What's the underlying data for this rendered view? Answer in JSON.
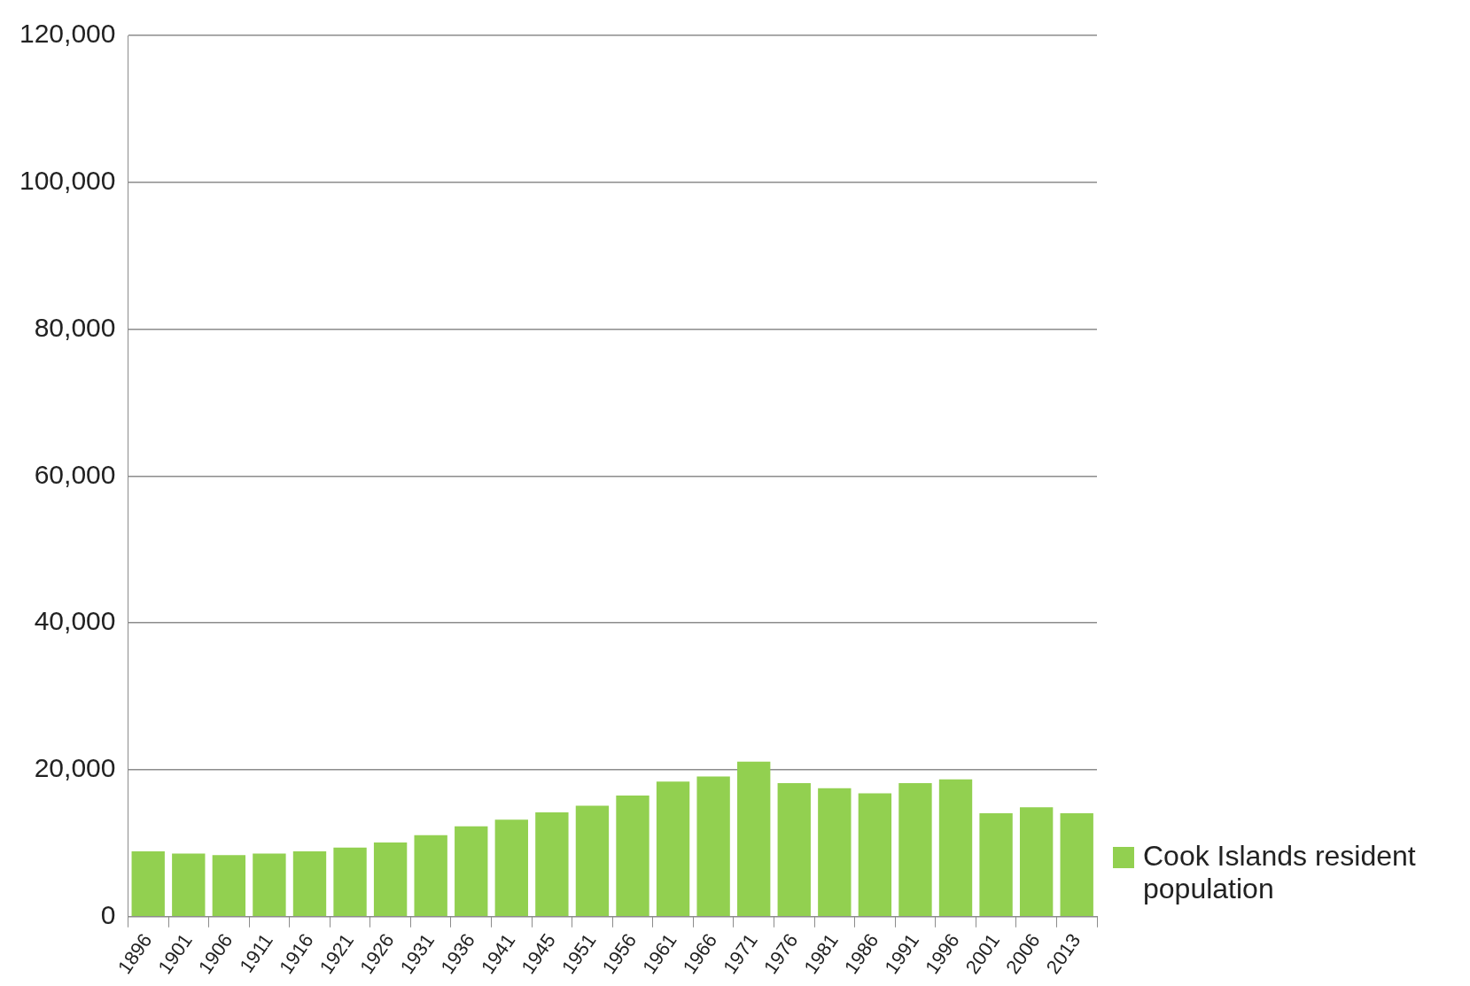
{
  "chart_data": {
    "type": "bar",
    "categories": [
      "1896",
      "1901",
      "1906",
      "1911",
      "1916",
      "1921",
      "1926",
      "1931",
      "1936",
      "1941",
      "1945",
      "1951",
      "1956",
      "1961",
      "1966",
      "1971",
      "1976",
      "1981",
      "1986",
      "1991",
      "1996",
      "2001",
      "2006",
      "2013"
    ],
    "series": [
      {
        "name": "Cook Islands resident population",
        "color": "#92d050",
        "values": [
          8900,
          8600,
          8400,
          8600,
          8900,
          9400,
          10100,
          11100,
          12300,
          13200,
          14200,
          15100,
          16500,
          18400,
          19100,
          21100,
          18200,
          17500,
          16800,
          18200,
          18700,
          14100,
          14900,
          14100
        ]
      }
    ],
    "ylim": [
      0,
      120000
    ],
    "yticks": [
      {
        "value": 0,
        "label": "0"
      },
      {
        "value": 20000,
        "label": "20,000"
      },
      {
        "value": 40000,
        "label": "40,000"
      },
      {
        "value": 60000,
        "label": "60,000"
      },
      {
        "value": 80000,
        "label": "80,000"
      },
      {
        "value": 100000,
        "label": "100,000"
      },
      {
        "value": 120000,
        "label": "120,000"
      }
    ],
    "grid": "y",
    "legend": "bottom right"
  }
}
